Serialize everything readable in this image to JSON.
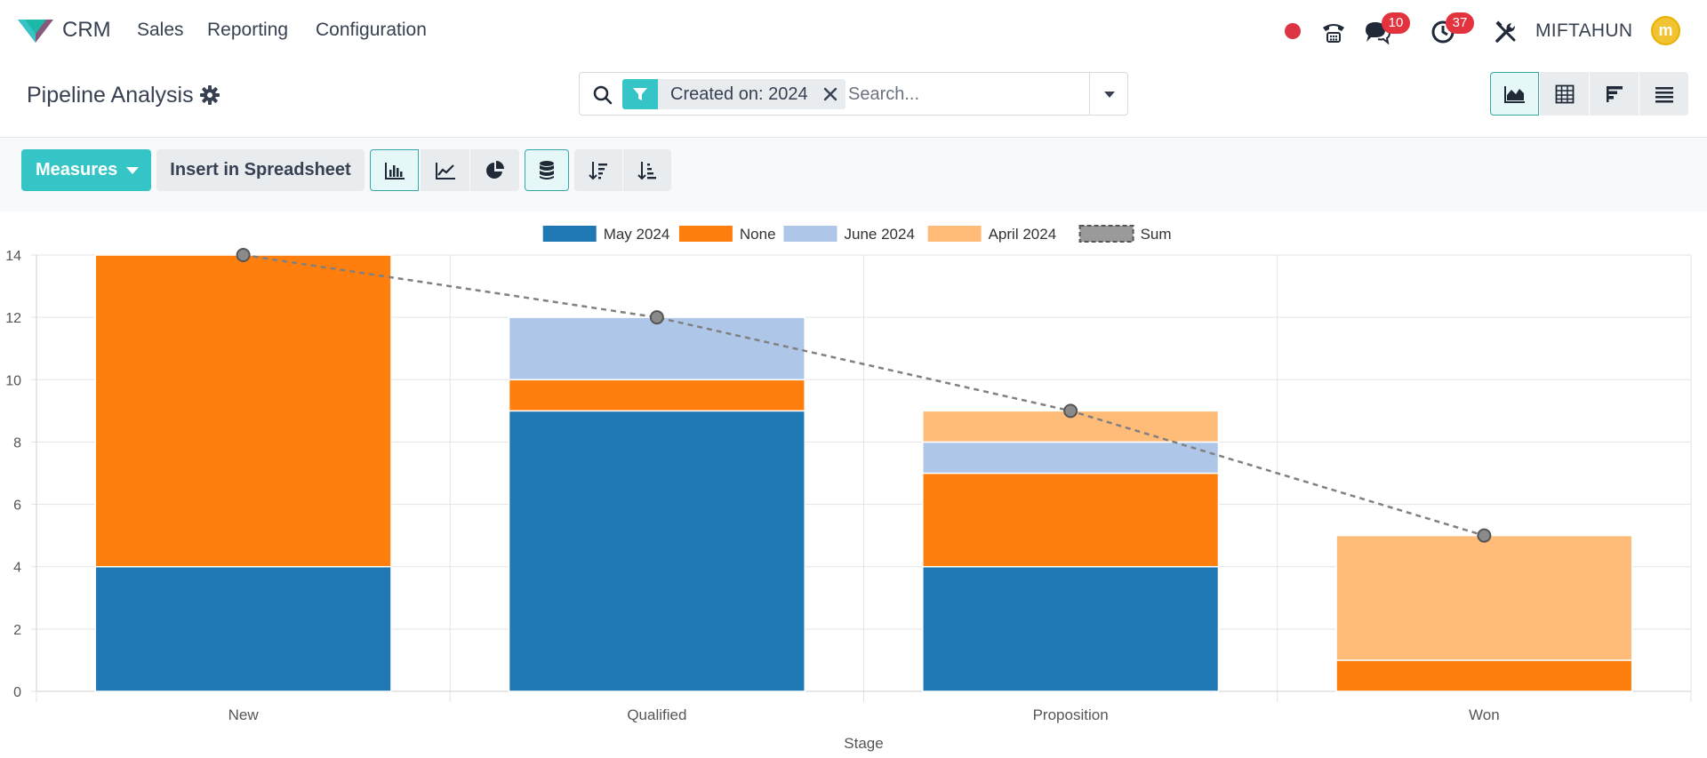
{
  "navbar": {
    "app_name": "CRM",
    "menus": [
      "Sales",
      "Reporting",
      "Configuration"
    ],
    "messages_count": "10",
    "activities_count": "37",
    "username": "MIFTAHUN",
    "avatar_letter": "m"
  },
  "control_panel": {
    "title": "Pipeline Analysis",
    "facet_label": "Created on: 2024",
    "search_placeholder": "Search..."
  },
  "toolbar": {
    "measures_label": "Measures",
    "insert_label": "Insert in Spreadsheet"
  },
  "colors": {
    "accent": "#35c5c6",
    "badge": "#e2333f",
    "may_2024": "#1f77b4",
    "none": "#ff7f0e",
    "june_2024": "#aec7e8",
    "april_2024": "#ffbb78",
    "sum": "#808080"
  },
  "chart_data": {
    "type": "bar",
    "stacked": true,
    "categories": [
      "New",
      "Qualified",
      "Proposition",
      "Won"
    ],
    "xlabel": "Stage",
    "ylabel": "",
    "ylim": [
      0,
      14
    ],
    "yticks": [
      0,
      2,
      4,
      6,
      8,
      10,
      12,
      14
    ],
    "grid": true,
    "legend_position": "top-center",
    "series": [
      {
        "name": "May 2024",
        "color": "#1f77b4",
        "values": [
          4,
          9,
          4,
          0
        ]
      },
      {
        "name": "None",
        "color": "#ff7f0e",
        "values": [
          10,
          1,
          3,
          1
        ]
      },
      {
        "name": "June 2024",
        "color": "#aec7e8",
        "values": [
          0,
          2,
          1,
          0
        ]
      },
      {
        "name": "April 2024",
        "color": "#ffbb78",
        "values": [
          0,
          0,
          1,
          4
        ]
      }
    ],
    "sum_line": {
      "name": "Sum",
      "color": "#808080",
      "values": [
        14,
        12,
        9,
        5
      ]
    }
  }
}
